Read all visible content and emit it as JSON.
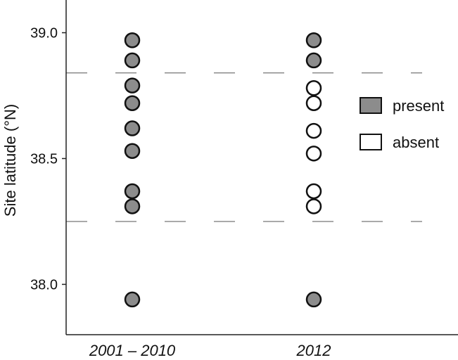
{
  "chart_data": {
    "type": "scatter",
    "title": "",
    "xlabel": "",
    "ylabel": "Site latitude (°N)",
    "categories": [
      "2001 – 2010",
      "2012"
    ],
    "ylim": [
      37.8,
      39.13
    ],
    "yticks": [
      "38.0",
      "38.5",
      "39.0"
    ],
    "reference_lines": [
      38.84,
      38.25
    ],
    "grid": false,
    "legend_position": "right",
    "series": [
      {
        "name": "present",
        "color": "#8c8c8c",
        "points": [
          {
            "category": "2001 – 2010",
            "y": 38.97
          },
          {
            "category": "2001 – 2010",
            "y": 38.89
          },
          {
            "category": "2001 – 2010",
            "y": 38.79
          },
          {
            "category": "2001 – 2010",
            "y": 38.72
          },
          {
            "category": "2001 – 2010",
            "y": 38.62
          },
          {
            "category": "2001 – 2010",
            "y": 38.53
          },
          {
            "category": "2001 – 2010",
            "y": 38.37
          },
          {
            "category": "2001 – 2010",
            "y": 38.31
          },
          {
            "category": "2001 – 2010",
            "y": 37.94
          },
          {
            "category": "2012",
            "y": 38.97
          },
          {
            "category": "2012",
            "y": 38.89
          },
          {
            "category": "2012",
            "y": 37.94
          }
        ]
      },
      {
        "name": "absent",
        "color": "#ffffff",
        "points": [
          {
            "category": "2012",
            "y": 38.78
          },
          {
            "category": "2012",
            "y": 38.72
          },
          {
            "category": "2012",
            "y": 38.61
          },
          {
            "category": "2012",
            "y": 38.52
          },
          {
            "category": "2012",
            "y": 38.37
          },
          {
            "category": "2012",
            "y": 38.31
          }
        ]
      }
    ]
  }
}
